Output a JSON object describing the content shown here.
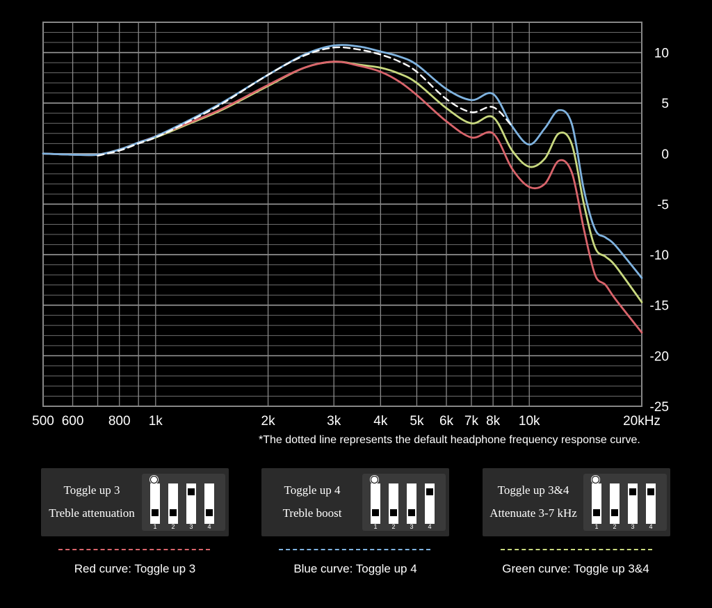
{
  "chart_data": {
    "type": "line",
    "x_scale": "log",
    "x_unit": "kHz",
    "xlim": [
      500,
      20000
    ],
    "ylim": [
      -25,
      13
    ],
    "x_ticks": [
      {
        "value": 500,
        "label": "500"
      },
      {
        "value": 600,
        "label": "600"
      },
      {
        "value": 800,
        "label": "800"
      },
      {
        "value": 1000,
        "label": "1k"
      },
      {
        "value": 2000,
        "label": "2k"
      },
      {
        "value": 3000,
        "label": "3k"
      },
      {
        "value": 4000,
        "label": "4k"
      },
      {
        "value": 5000,
        "label": "5k"
      },
      {
        "value": 6000,
        "label": "6k"
      },
      {
        "value": 7000,
        "label": "7k"
      },
      {
        "value": 8000,
        "label": "8k"
      },
      {
        "value": 10000,
        "label": "10k"
      },
      {
        "value": 20000,
        "label": "20kHz"
      }
    ],
    "y_ticks": [
      10,
      5,
      0,
      -5,
      -10,
      -15,
      -20,
      -25
    ],
    "grid": true,
    "series": [
      {
        "name": "Red curve: Toggle up 3",
        "color": "#d9646b",
        "dash": "solid",
        "points": [
          [
            500,
            0
          ],
          [
            600,
            -0.1
          ],
          [
            700,
            -0.1
          ],
          [
            800,
            0.4
          ],
          [
            900,
            1.1
          ],
          [
            1000,
            1.7
          ],
          [
            1200,
            2.9
          ],
          [
            1500,
            4.4
          ],
          [
            2000,
            6.8
          ],
          [
            2500,
            8.5
          ],
          [
            3000,
            9.1
          ],
          [
            3500,
            8.7
          ],
          [
            4000,
            8.1
          ],
          [
            4500,
            7.1
          ],
          [
            5000,
            5.8
          ],
          [
            6000,
            3.2
          ],
          [
            7000,
            1.6
          ],
          [
            8000,
            2.0
          ],
          [
            9000,
            -1.5
          ],
          [
            10000,
            -3.3
          ],
          [
            11000,
            -3.0
          ],
          [
            12000,
            -0.7
          ],
          [
            13000,
            -1.9
          ],
          [
            14000,
            -7.5
          ],
          [
            15000,
            -12.0
          ],
          [
            16000,
            -13.0
          ],
          [
            17000,
            -14.4
          ],
          [
            20000,
            -17.7
          ]
        ]
      },
      {
        "name": "Blue curve: Toggle up 4",
        "color": "#7fb3e0",
        "dash": "solid",
        "points": [
          [
            500,
            0
          ],
          [
            600,
            -0.1
          ],
          [
            700,
            -0.1
          ],
          [
            800,
            0.4
          ],
          [
            900,
            1.1
          ],
          [
            1000,
            1.7
          ],
          [
            1200,
            3.1
          ],
          [
            1500,
            5.0
          ],
          [
            2000,
            7.8
          ],
          [
            2500,
            9.8
          ],
          [
            3000,
            10.7
          ],
          [
            3500,
            10.6
          ],
          [
            4000,
            10.1
          ],
          [
            4500,
            9.6
          ],
          [
            5000,
            8.8
          ],
          [
            6000,
            6.4
          ],
          [
            7000,
            5.3
          ],
          [
            8000,
            5.9
          ],
          [
            9000,
            2.7
          ],
          [
            10000,
            0.9
          ],
          [
            11000,
            2.5
          ],
          [
            12000,
            4.3
          ],
          [
            13000,
            2.9
          ],
          [
            14000,
            -3.6
          ],
          [
            15000,
            -7.5
          ],
          [
            16000,
            -8.3
          ],
          [
            17000,
            -9.1
          ],
          [
            20000,
            -12.3
          ]
        ]
      },
      {
        "name": "Green curve: Toggle up 3&4",
        "color": "#c9d97f",
        "dash": "solid",
        "points": [
          [
            500,
            0
          ],
          [
            600,
            -0.1
          ],
          [
            700,
            -0.1
          ],
          [
            800,
            0.4
          ],
          [
            900,
            1.1
          ],
          [
            1000,
            1.6
          ],
          [
            1200,
            2.8
          ],
          [
            1500,
            4.3
          ],
          [
            2000,
            6.7
          ],
          [
            2500,
            8.5
          ],
          [
            3000,
            9.1
          ],
          [
            3500,
            8.8
          ],
          [
            4000,
            8.5
          ],
          [
            4500,
            7.9
          ],
          [
            5000,
            7.0
          ],
          [
            6000,
            4.5
          ],
          [
            7000,
            3.0
          ],
          [
            8000,
            3.6
          ],
          [
            9000,
            0.3
          ],
          [
            10000,
            -1.3
          ],
          [
            11000,
            -0.5
          ],
          [
            12000,
            2.0
          ],
          [
            13000,
            0.9
          ],
          [
            14000,
            -5.0
          ],
          [
            15000,
            -9.3
          ],
          [
            16000,
            -10.2
          ],
          [
            17000,
            -11.1
          ],
          [
            20000,
            -14.7
          ]
        ]
      },
      {
        "name": "default",
        "color": "#ffffff",
        "dash": "dashed",
        "points": [
          [
            700,
            -0.2
          ],
          [
            800,
            0.3
          ],
          [
            900,
            1.0
          ],
          [
            1000,
            1.6
          ],
          [
            1200,
            3.0
          ],
          [
            1500,
            4.9
          ],
          [
            2000,
            7.8
          ],
          [
            2500,
            9.7
          ],
          [
            3000,
            10.5
          ],
          [
            3500,
            10.3
          ],
          [
            4000,
            9.8
          ],
          [
            4500,
            9.1
          ],
          [
            5000,
            8.1
          ],
          [
            6000,
            5.4
          ],
          [
            7000,
            4.1
          ],
          [
            8000,
            4.6
          ],
          [
            9000,
            2.7
          ]
        ]
      }
    ],
    "annotation": "*The dotted line represents the default headphone frequency response curve."
  },
  "panels": [
    {
      "line1": "Toggle up 3",
      "line2": "Treble attenuation",
      "up": [
        3
      ]
    },
    {
      "line1": "Toggle up 4",
      "line2": "Treble boost",
      "up": [
        4
      ]
    },
    {
      "line1": "Toggle up 3&4",
      "line2": "Attenuate 3-7 kHz",
      "up": [
        3,
        4
      ]
    }
  ],
  "switch_numbers": [
    "1",
    "2",
    "3",
    "4"
  ],
  "legend": [
    {
      "label": "Red curve: Toggle up 3",
      "color": "#d9646b"
    },
    {
      "label": "Blue curve: Toggle up 4",
      "color": "#7fb3e0"
    },
    {
      "label": "Green curve: Toggle up 3&4",
      "color": "#c9d97f"
    }
  ]
}
